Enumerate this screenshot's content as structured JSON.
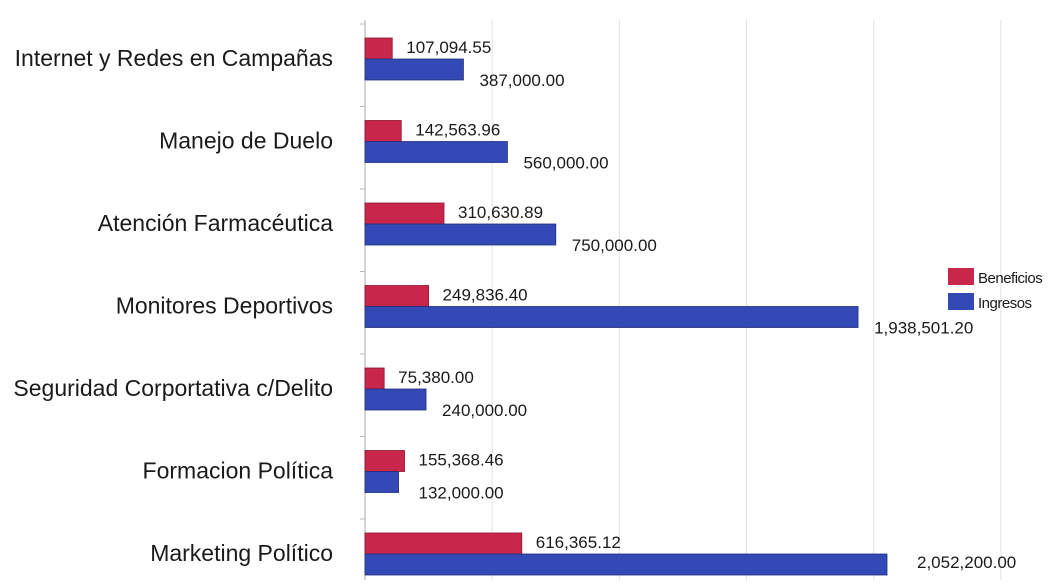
{
  "chart_data": {
    "type": "bar",
    "orientation": "horizontal",
    "categories": [
      "Internet y Redes en Campañas",
      "Manejo de Duelo",
      "Atención Farmacéutica",
      "Monitores Deportivos",
      "Seguridad Corportativa c/Delito",
      "Formacion Política",
      "Marketing Político"
    ],
    "series": [
      {
        "name": "Beneficios",
        "color": "#c8264a",
        "values": [
          107094.55,
          142563.96,
          310630.89,
          249836.4,
          75380.0,
          155368.46,
          616365.12
        ],
        "labels": [
          "107,094.55",
          "142,563.96",
          "310,630.89",
          "249,836.40",
          "75,380.00",
          "155,368.46",
          "616,365.12"
        ]
      },
      {
        "name": "Ingresos",
        "color": "#3349b5",
        "values": [
          387000.0,
          560000.0,
          750000.0,
          1938501.2,
          240000.0,
          132000.0,
          2052200.0
        ],
        "labels": [
          "387,000.00",
          "560,000.00",
          "750,000.00",
          "1,938,501.20",
          "240,000.00",
          "132,000.00",
          "2,052,200.00"
        ]
      }
    ],
    "xlim": [
      0,
      2500000
    ],
    "grid": true,
    "legend": "right"
  }
}
